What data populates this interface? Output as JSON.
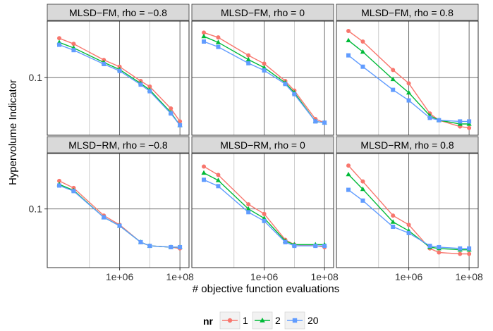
{
  "chart_data": {
    "type": "line",
    "xlabel": "# objective function evaluations",
    "ylabel": "Hypervolume Indicator",
    "x_scale": "log10",
    "y_scale": "log10",
    "x_ticks": [
      {
        "value": 1000000,
        "label": "1e+06"
      },
      {
        "value": 100000000,
        "label": "1e+08"
      }
    ],
    "y_ticks": [
      {
        "value": 0.1,
        "label": "0.1"
      }
    ],
    "legend": {
      "title": "nr",
      "position": "bottom",
      "entries": [
        "1",
        "2",
        "20"
      ]
    },
    "colors": {
      "1": "#f8766d",
      "2": "#00ba38",
      "20": "#619cff"
    },
    "x": [
      10000,
      30000,
      300000,
      1000000,
      5000000,
      10000000,
      50000000,
      100000000
    ],
    "panels": [
      {
        "title": "MLSD−FM, rho = −0.8",
        "ylim": [
          0.035,
          0.28
        ],
        "series": [
          {
            "name": "1",
            "values": [
              0.205,
              0.185,
              0.138,
              0.122,
              0.094,
              0.085,
              0.057,
              0.045
            ]
          },
          {
            "name": "2",
            "values": [
              0.19,
              0.172,
              0.132,
              0.116,
              0.09,
              0.08,
              0.053,
              0.042
            ]
          },
          {
            "name": "20",
            "values": [
              0.182,
              0.165,
              0.128,
              0.113,
              0.088,
              0.078,
              0.052,
              0.042
            ]
          }
        ]
      },
      {
        "title": "MLSD−FM, rho = 0",
        "ylim": [
          0.035,
          0.28
        ],
        "series": [
          {
            "name": "1",
            "values": [
              0.227,
              0.208,
              0.15,
              0.129,
              0.094,
              0.079,
              0.047,
              0.044
            ]
          },
          {
            "name": "2",
            "values": [
              0.212,
              0.19,
              0.139,
              0.12,
              0.091,
              0.076,
              0.045,
              0.044
            ]
          },
          {
            "name": "20",
            "values": [
              0.193,
              0.175,
              0.13,
              0.114,
              0.089,
              0.074,
              0.045,
              0.044
            ]
          }
        ]
      },
      {
        "title": "MLSD−FM, rho = 0.8",
        "ylim": [
          0.035,
          0.28
        ],
        "series": [
          {
            "name": "1",
            "values": [
              0.234,
              0.193,
              0.115,
              0.09,
              0.052,
              0.046,
              0.041,
              0.04
            ]
          },
          {
            "name": "2",
            "values": [
              0.197,
              0.16,
              0.097,
              0.076,
              0.05,
              0.046,
              0.043,
              0.043
            ]
          },
          {
            "name": "20",
            "values": [
              0.15,
              0.122,
              0.08,
              0.066,
              0.048,
              0.046,
              0.045,
              0.045
            ]
          }
        ]
      },
      {
        "title": "MLSD−RM, rho = −0.8",
        "ylim": [
          0.048,
          0.2
        ],
        "series": [
          {
            "name": "1",
            "values": [
              0.142,
              0.13,
              0.092,
              0.082,
              0.066,
              0.063,
              0.062,
              0.061
            ]
          },
          {
            "name": "2",
            "values": [
              0.136,
              0.126,
              0.09,
              0.081,
              0.066,
              0.063,
              0.062,
              0.062
            ]
          },
          {
            "name": "20",
            "values": [
              0.134,
              0.125,
              0.09,
              0.081,
              0.066,
              0.063,
              0.062,
              0.062
            ]
          }
        ]
      },
      {
        "title": "MLSD−RM, rho = 0",
        "ylim": [
          0.048,
          0.2
        ],
        "series": [
          {
            "name": "1",
            "values": [
              0.17,
              0.153,
              0.106,
              0.094,
              0.068,
              0.064,
              0.063,
              0.062
            ]
          },
          {
            "name": "2",
            "values": [
              0.157,
              0.143,
              0.1,
              0.089,
              0.067,
              0.064,
              0.064,
              0.064
            ]
          },
          {
            "name": "20",
            "values": [
              0.144,
              0.133,
              0.096,
              0.086,
              0.066,
              0.063,
              0.063,
              0.063
            ]
          }
        ]
      },
      {
        "title": "MLSD−RM, rho = 0.8",
        "ylim": [
          0.048,
          0.2
        ],
        "series": [
          {
            "name": "1",
            "values": [
              0.172,
              0.141,
              0.092,
              0.082,
              0.061,
              0.058,
              0.057,
              0.057
            ]
          },
          {
            "name": "2",
            "values": [
              0.154,
              0.128,
              0.085,
              0.076,
              0.062,
              0.061,
              0.06,
              0.06
            ]
          },
          {
            "name": "20",
            "values": [
              0.127,
              0.111,
              0.08,
              0.074,
              0.063,
              0.062,
              0.061,
              0.061
            ]
          }
        ]
      }
    ]
  }
}
